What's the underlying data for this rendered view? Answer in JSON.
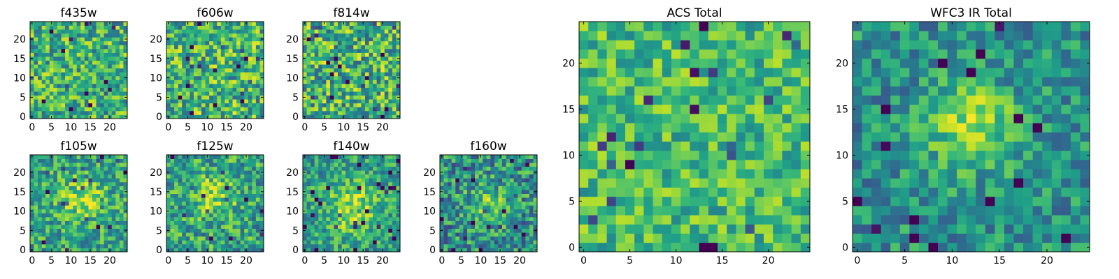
{
  "figure": {
    "colormap": "viridis",
    "colors": {
      "background": "#ffffff",
      "axes_edge": "#000000",
      "tick_text": "#000000"
    }
  },
  "chart_data": [
    {
      "type": "heatmap",
      "title": "f435w",
      "grid_size": 25,
      "xlim": [
        0,
        24
      ],
      "ylim": [
        0,
        24
      ],
      "x_ticks": [
        0,
        5,
        10,
        15,
        20
      ],
      "y_ticks": [
        0,
        5,
        10,
        15,
        20
      ],
      "pattern": "uniform noise",
      "seed": 11,
      "noise": 0.3,
      "base": 0.64,
      "blob_amplitude": 0.0,
      "blob_center": [
        12,
        12
      ],
      "blob_sigma": 3.5
    },
    {
      "type": "heatmap",
      "title": "f606w",
      "grid_size": 25,
      "xlim": [
        0,
        24
      ],
      "ylim": [
        0,
        24
      ],
      "x_ticks": [
        0,
        5,
        10,
        15,
        20
      ],
      "y_ticks": [
        0,
        5,
        10,
        15,
        20
      ],
      "pattern": "uniform noise",
      "seed": 23,
      "noise": 0.32,
      "base": 0.66,
      "blob_amplitude": 0.0,
      "blob_center": [
        12,
        12
      ],
      "blob_sigma": 3.5
    },
    {
      "type": "heatmap",
      "title": "f814w",
      "grid_size": 25,
      "xlim": [
        0,
        24
      ],
      "ylim": [
        0,
        24
      ],
      "x_ticks": [
        0,
        5,
        10,
        15,
        20
      ],
      "y_ticks": [
        0,
        5,
        10,
        15,
        20
      ],
      "pattern": "uniform noise",
      "seed": 37,
      "noise": 0.34,
      "base": 0.64,
      "blob_amplitude": 0.0,
      "blob_center": [
        12,
        12
      ],
      "blob_sigma": 3.5
    },
    {
      "type": "heatmap",
      "title": "f105w",
      "grid_size": 25,
      "xlim": [
        0,
        24
      ],
      "ylim": [
        0,
        24
      ],
      "x_ticks": [
        0,
        5,
        10,
        15,
        20
      ],
      "y_ticks": [
        0,
        5,
        10,
        15,
        20
      ],
      "pattern": "noise with central bright source",
      "seed": 41,
      "noise": 0.26,
      "base": 0.58,
      "blob_amplitude": 0.28,
      "blob_center": [
        13,
        13
      ],
      "blob_sigma": 4.0
    },
    {
      "type": "heatmap",
      "title": "f125w",
      "grid_size": 25,
      "xlim": [
        0,
        24
      ],
      "ylim": [
        0,
        24
      ],
      "x_ticks": [
        0,
        5,
        10,
        15,
        20
      ],
      "y_ticks": [
        0,
        5,
        10,
        15,
        20
      ],
      "pattern": "noise with central bright source",
      "seed": 53,
      "noise": 0.28,
      "base": 0.58,
      "blob_amplitude": 0.24,
      "blob_center": [
        12,
        14
      ],
      "blob_sigma": 4.0
    },
    {
      "type": "heatmap",
      "title": "f140w",
      "grid_size": 25,
      "xlim": [
        0,
        24
      ],
      "ylim": [
        0,
        24
      ],
      "x_ticks": [
        0,
        5,
        10,
        15,
        20
      ],
      "y_ticks": [
        0,
        5,
        10,
        15,
        20
      ],
      "pattern": "noise with central bright source",
      "seed": 67,
      "noise": 0.24,
      "base": 0.56,
      "blob_amplitude": 0.32,
      "blob_center": [
        12,
        11
      ],
      "blob_sigma": 4.5
    },
    {
      "type": "heatmap",
      "title": "f160w",
      "grid_size": 25,
      "xlim": [
        0,
        24
      ],
      "ylim": [
        0,
        24
      ],
      "x_ticks": [
        0,
        5,
        10,
        15,
        20
      ],
      "y_ticks": [
        0,
        5,
        10,
        15,
        20
      ],
      "pattern": "noise with central bright source",
      "seed": 79,
      "noise": 0.3,
      "base": 0.5,
      "blob_amplitude": 0.26,
      "blob_center": [
        12,
        12
      ],
      "blob_sigma": 3.5
    },
    {
      "type": "heatmap",
      "title": "ACS Total",
      "grid_size": 25,
      "xlim": [
        0,
        24
      ],
      "ylim": [
        0,
        24
      ],
      "x_ticks": [
        0,
        5,
        10,
        15,
        20
      ],
      "y_ticks": [
        0,
        5,
        10,
        15,
        20
      ],
      "pattern": "uniform noise",
      "seed": 97,
      "noise": 0.22,
      "base": 0.68,
      "blob_amplitude": 0.0,
      "blob_center": [
        12,
        12
      ],
      "blob_sigma": 3.5
    },
    {
      "type": "heatmap",
      "title": "WFC3 IR Total",
      "grid_size": 25,
      "xlim": [
        0,
        24
      ],
      "ylim": [
        0,
        24
      ],
      "x_ticks": [
        0,
        5,
        10,
        15,
        20
      ],
      "y_ticks": [
        0,
        5,
        10,
        15,
        20
      ],
      "pattern": "noise with central bright source",
      "seed": 113,
      "noise": 0.22,
      "base": 0.5,
      "blob_amplitude": 0.4,
      "blob_center": [
        12,
        13
      ],
      "blob_sigma": 3.2
    }
  ]
}
